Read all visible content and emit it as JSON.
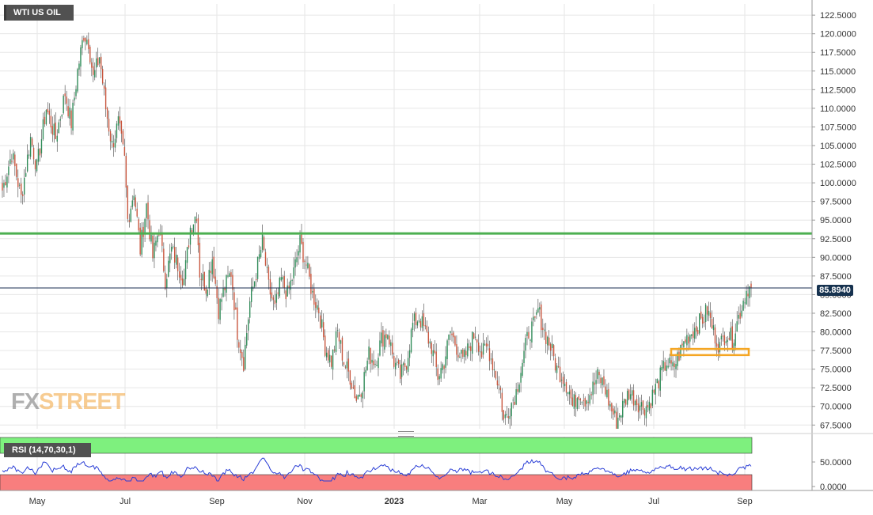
{
  "title": "WTI US OIL",
  "watermark": {
    "part1": "FX",
    "part2": "STREET"
  },
  "price_tag": "85.8940",
  "chart_data": [
    {
      "type": "candlestick",
      "title": "WTI US OIL",
      "ylim": [
        67.0,
        124.0
      ],
      "y_ticks": [
        "122.5000",
        "120.0000",
        "117.5000",
        "115.0000",
        "112.5000",
        "110.0000",
        "107.5000",
        "105.0000",
        "102.5000",
        "100.0000",
        "97.5000",
        "95.0000",
        "92.5000",
        "90.0000",
        "87.5000",
        "85.0000",
        "82.5000",
        "80.0000",
        "77.5000",
        "75.0000",
        "72.5000",
        "70.0000",
        "67.5000"
      ],
      "x_ticks": [
        "May",
        "Jul",
        "Sep",
        "Nov",
        "2023",
        "Mar",
        "May",
        "Jul",
        "Sep"
      ],
      "last_price": 85.894,
      "horizontal_lines": [
        {
          "level": 93.2,
          "color": "#4caf50"
        },
        {
          "level": 85.894,
          "color": "#1a2d52"
        }
      ],
      "support_zone": {
        "from": 77.1,
        "to": 77.5,
        "color": "#f5a623"
      },
      "anchor_closes": [
        [
          0,
          99.0
        ],
        [
          6,
          104.0
        ],
        [
          12,
          98.0
        ],
        [
          18,
          106.0
        ],
        [
          22,
          102.0
        ],
        [
          28,
          110.0
        ],
        [
          34,
          106.0
        ],
        [
          40,
          112.0
        ],
        [
          44,
          108.0
        ],
        [
          48,
          115.0
        ],
        [
          52,
          120.0
        ],
        [
          55,
          119.0
        ],
        [
          58,
          114.0
        ],
        [
          62,
          117.0
        ],
        [
          66,
          110.0
        ],
        [
          70,
          105.0
        ],
        [
          74,
          108.0
        ],
        [
          78,
          103.0
        ],
        [
          80,
          95.0
        ],
        [
          84,
          99.0
        ],
        [
          88,
          91.0
        ],
        [
          92,
          97.0
        ],
        [
          96,
          90.0
        ],
        [
          100,
          94.0
        ],
        [
          104,
          87.0
        ],
        [
          108,
          91.0
        ],
        [
          112,
          89.0
        ],
        [
          116,
          87.0
        ],
        [
          120,
          94.0
        ],
        [
          124,
          96.0
        ],
        [
          126,
          88.0
        ],
        [
          130,
          86.0
        ],
        [
          134,
          90.0
        ],
        [
          138,
          83.0
        ],
        [
          142,
          86.0
        ],
        [
          146,
          88.0
        ],
        [
          150,
          80.0
        ],
        [
          152,
          78.0
        ],
        [
          154,
          76.0
        ],
        [
          158,
          84.0
        ],
        [
          162,
          88.0
        ],
        [
          166,
          92.0
        ],
        [
          170,
          86.0
        ],
        [
          174,
          83.0
        ],
        [
          178,
          87.0
        ],
        [
          182,
          85.0
        ],
        [
          186,
          88.0
        ],
        [
          190,
          92.0
        ],
        [
          194,
          89.0
        ],
        [
          198,
          85.0
        ],
        [
          202,
          83.0
        ],
        [
          206,
          78.0
        ],
        [
          210,
          76.0
        ],
        [
          214,
          80.0
        ],
        [
          218,
          76.0
        ],
        [
          222,
          74.0
        ],
        [
          226,
          71.0
        ],
        [
          230,
          73.0
        ],
        [
          234,
          77.0
        ],
        [
          238,
          76.0
        ],
        [
          242,
          79.0
        ],
        [
          246,
          80.0
        ],
        [
          250,
          76.0
        ],
        [
          254,
          74.0
        ],
        [
          258,
          76.0
        ],
        [
          262,
          81.0
        ],
        [
          266,
          82.0
        ],
        [
          270,
          80.0
        ],
        [
          274,
          78.0
        ],
        [
          278,
          74.0
        ],
        [
          282,
          76.0
        ],
        [
          286,
          80.0
        ],
        [
          290,
          78.0
        ],
        [
          294,
          76.0
        ],
        [
          298,
          78.0
        ],
        [
          302,
          80.0
        ],
        [
          306,
          77.0
        ],
        [
          310,
          78.0
        ],
        [
          314,
          75.0
        ],
        [
          318,
          72.0
        ],
        [
          320,
          68.0
        ],
        [
          324,
          70.0
        ],
        [
          328,
          72.0
        ],
        [
          332,
          76.0
        ],
        [
          336,
          80.0
        ],
        [
          340,
          81.0
        ],
        [
          342,
          83.0
        ],
        [
          346,
          80.0
        ],
        [
          350,
          78.0
        ],
        [
          354,
          75.0
        ],
        [
          358,
          74.0
        ],
        [
          362,
          72.0
        ],
        [
          364,
          70.0
        ],
        [
          368,
          72.0
        ],
        [
          372,
          71.0
        ],
        [
          376,
          72.0
        ],
        [
          380,
          74.0
        ],
        [
          384,
          73.0
        ],
        [
          388,
          70.0
        ],
        [
          392,
          68.0
        ],
        [
          396,
          70.0
        ],
        [
          400,
          72.0
        ],
        [
          404,
          71.0
        ],
        [
          408,
          70.0
        ],
        [
          412,
          70.0
        ],
        [
          416,
          72.0
        ],
        [
          420,
          74.0
        ],
        [
          424,
          76.0
        ],
        [
          428,
          75.0
        ],
        [
          432,
          77.0
        ],
        [
          436,
          79.0
        ],
        [
          440,
          80.0
        ],
        [
          444,
          81.0
        ],
        [
          448,
          82.0
        ],
        [
          450,
          83.0
        ],
        [
          454,
          80.0
        ],
        [
          458,
          78.0
        ],
        [
          462,
          80.0
        ],
        [
          466,
          79.0
        ],
        [
          470,
          82.0
        ],
        [
          474,
          85.0
        ],
        [
          476,
          86.0
        ],
        [
          478,
          85.9
        ]
      ],
      "rsi": {
        "label": "RSI (14,70,30,1)",
        "ylim": [
          0,
          100
        ],
        "y_ticks": [
          "50.0000",
          "0.0000"
        ],
        "overbought": 70,
        "oversold": 30
      }
    }
  ]
}
